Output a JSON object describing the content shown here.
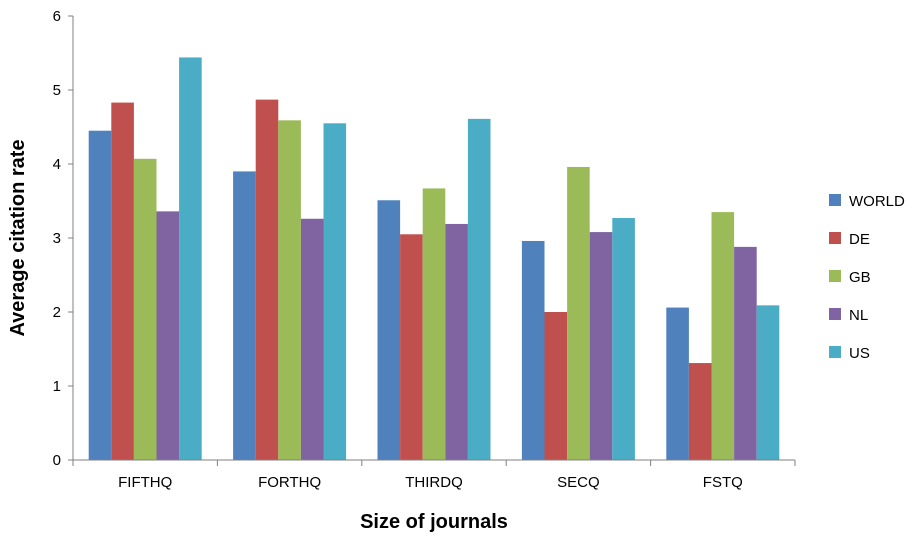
{
  "chart_data": {
    "type": "bar",
    "title": "",
    "xlabel": "Size of journals",
    "ylabel": "Average citation rate",
    "ylim": [
      0,
      6
    ],
    "yticks": [
      "0",
      "1",
      "2",
      "3",
      "4",
      "5",
      "6"
    ],
    "categories": [
      "FIFTHQ",
      "FORTHQ",
      "THIRDQ",
      "SECQ",
      "FSTQ"
    ],
    "series": [
      {
        "name": "WORLD",
        "color": "#4F81BD",
        "values": [
          4.45,
          3.9,
          3.51,
          2.96,
          2.06
        ]
      },
      {
        "name": "DE",
        "color": "#C0504D",
        "values": [
          4.83,
          4.87,
          3.05,
          2.0,
          1.31
        ]
      },
      {
        "name": "GB",
        "color": "#9BBB59",
        "values": [
          4.07,
          4.59,
          3.67,
          3.96,
          3.35
        ]
      },
      {
        "name": "NL",
        "color": "#8064A2",
        "values": [
          3.36,
          3.26,
          3.19,
          3.08,
          2.88
        ]
      },
      {
        "name": "US",
        "color": "#4BACC6",
        "values": [
          5.44,
          4.55,
          4.61,
          3.27,
          2.09
        ]
      }
    ],
    "grid": false,
    "legend_position": "right"
  }
}
